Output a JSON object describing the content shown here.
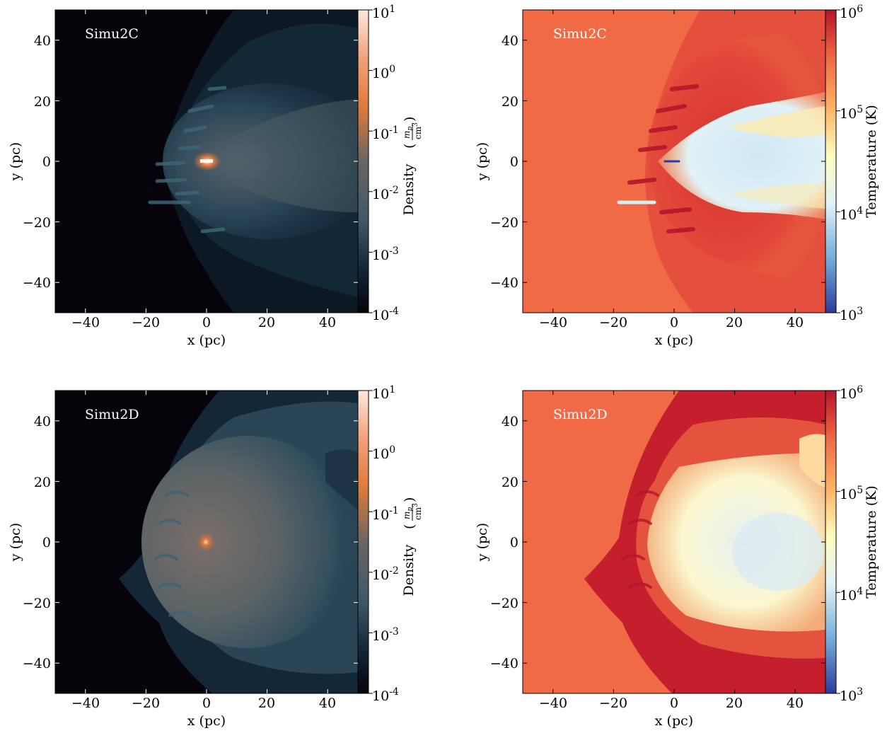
{
  "chart_data": [
    {
      "type": "heatmap",
      "quantity": "density",
      "panel_label": "Simu2C",
      "xlabel": "x  (pc)",
      "ylabel": "y  (pc)",
      "xlim": [
        -50,
        50
      ],
      "ylim": [
        -50,
        50
      ],
      "xticks": [
        -40,
        -20,
        0,
        20,
        40
      ],
      "yticks": [
        -40,
        -20,
        0,
        20,
        40
      ],
      "xtick_labels": [
        "−40",
        "−20",
        "0",
        "20",
        "40"
      ],
      "ytick_labels": [
        "−40",
        "−20",
        "0",
        "20",
        "40"
      ],
      "colorbar": {
        "label": "Density",
        "unit_num": "m",
        "unit_num_sub": "p",
        "unit_den": "cm",
        "unit_den_sup": "3",
        "scale": "log",
        "range": [
          0.0001,
          10
        ],
        "tick_exponents": [
          1,
          0,
          -1,
          -2,
          -3,
          -4
        ]
      },
      "colors": [
        "#06030a",
        "#12283a",
        "#3d5868",
        "#6b6464",
        "#e07a3a",
        "#f2a17a",
        "#fde8de"
      ]
    },
    {
      "type": "heatmap",
      "quantity": "temperature",
      "panel_label": "Simu2C",
      "xlabel": "x  (pc)",
      "ylabel": "y  (pc)",
      "xlim": [
        -50,
        50
      ],
      "ylim": [
        -50,
        50
      ],
      "xticks": [
        -40,
        -20,
        0,
        20,
        40
      ],
      "yticks": [
        -40,
        -20,
        0,
        20,
        40
      ],
      "xtick_labels": [
        "−40",
        "−20",
        "0",
        "20",
        "40"
      ],
      "ytick_labels": [
        "−40",
        "−20",
        "0",
        "20",
        "40"
      ],
      "colorbar": {
        "label": "Temperature  (K)",
        "scale": "log",
        "range": [
          1000,
          1000000
        ],
        "tick_exponents": [
          6,
          5,
          4,
          3
        ]
      },
      "colors": [
        "#2d3b9a",
        "#74addb",
        "#e1f2f7",
        "#fefcbd",
        "#fcb164",
        "#ef6a45",
        "#b5152b"
      ]
    },
    {
      "type": "heatmap",
      "quantity": "density",
      "panel_label": "Simu2D",
      "xlabel": "x  (pc)",
      "ylabel": "y  (pc)",
      "xlim": [
        -50,
        50
      ],
      "ylim": [
        -50,
        50
      ],
      "xticks": [
        -40,
        -20,
        0,
        20,
        40
      ],
      "yticks": [
        -40,
        -20,
        0,
        20,
        40
      ],
      "xtick_labels": [
        "−40",
        "−20",
        "0",
        "20",
        "40"
      ],
      "ytick_labels": [
        "−40",
        "−20",
        "0",
        "20",
        "40"
      ],
      "colorbar": {
        "label": "Density",
        "unit_num": "m",
        "unit_num_sub": "p",
        "unit_den": "cm",
        "unit_den_sup": "3",
        "scale": "log",
        "range": [
          0.0001,
          10
        ],
        "tick_exponents": [
          1,
          0,
          -1,
          -2,
          -3,
          -4
        ]
      },
      "colors": [
        "#06030a",
        "#12283a",
        "#3d5868",
        "#6b6464",
        "#e07a3a",
        "#f2a17a",
        "#fde8de"
      ]
    },
    {
      "type": "heatmap",
      "quantity": "temperature",
      "panel_label": "Simu2D",
      "xlabel": "x  (pc)",
      "ylabel": "y  (pc)",
      "xlim": [
        -50,
        50
      ],
      "ylim": [
        -50,
        50
      ],
      "xticks": [
        -40,
        -20,
        0,
        20,
        40
      ],
      "yticks": [
        -40,
        -20,
        0,
        20,
        40
      ],
      "xtick_labels": [
        "−40",
        "−20",
        "0",
        "20",
        "40"
      ],
      "ytick_labels": [
        "−40",
        "−20",
        "0",
        "20",
        "40"
      ],
      "colorbar": {
        "label": "Temperature  (K)",
        "scale": "log",
        "range": [
          1000,
          1000000
        ],
        "tick_exponents": [
          6,
          5,
          4,
          3
        ]
      },
      "colors": [
        "#2d3b9a",
        "#74addb",
        "#e1f2f7",
        "#fefcbd",
        "#fcb164",
        "#ef6a45",
        "#b5152b"
      ]
    }
  ]
}
